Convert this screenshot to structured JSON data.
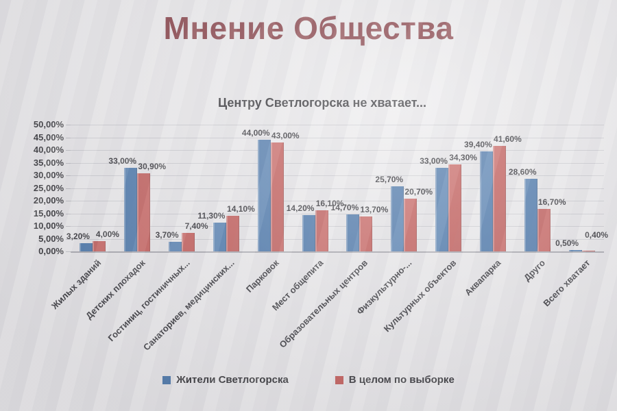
{
  "page": {
    "title": "Мнение Общества",
    "title_color": "#7a2a31"
  },
  "chart_data": {
    "type": "bar",
    "title": "Центру Светлогорска не хватает...",
    "categories": [
      "Жилых зданий",
      "Детских плохадок",
      "Гостиниц, гостиничных...",
      "Санаториев, медицинских...",
      "Парковок",
      "Мест общепита",
      "Образовательных центров",
      "Физкультурно-...",
      "Культурных объектов",
      "Аквапарка",
      "Друго",
      "Всего хватает"
    ],
    "series": [
      {
        "name": "Жители Светлогорска",
        "color": "#3d6ea6",
        "values": [
          3.2,
          33.0,
          3.7,
          11.3,
          44.0,
          14.2,
          14.7,
          25.7,
          33.0,
          39.4,
          28.6,
          0.5
        ],
        "labels": [
          "3,20%",
          "33,00%",
          "3,70%",
          "11,30%",
          "44,00%",
          "14,20%",
          "14,70%",
          "25,70%",
          "33,00%",
          "39,40%",
          "28,60%",
          "0,50%"
        ]
      },
      {
        "name": "В целом по выборке",
        "color": "#c04f4b",
        "values": [
          4.0,
          30.9,
          7.4,
          14.1,
          43.0,
          16.1,
          13.7,
          20.7,
          34.3,
          41.6,
          16.7,
          0.4
        ],
        "labels": [
          "4,00%",
          "30,90%",
          "7,40%",
          "14,10%",
          "43,00%",
          "16,10%",
          "13,70%",
          "20,70%",
          "34,30%",
          "41,60%",
          "16,70%",
          "0,40%"
        ]
      }
    ],
    "y_axis": {
      "min": 0,
      "max": 50,
      "step": 5,
      "ticks": [
        "50,00%",
        "45,00%",
        "40,00%",
        "35,00%",
        "30,00%",
        "25,00%",
        "20,00%",
        "15,00%",
        "10,00%",
        "5,00%",
        "0,00%"
      ]
    },
    "grid": true,
    "legend_position": "bottom"
  }
}
